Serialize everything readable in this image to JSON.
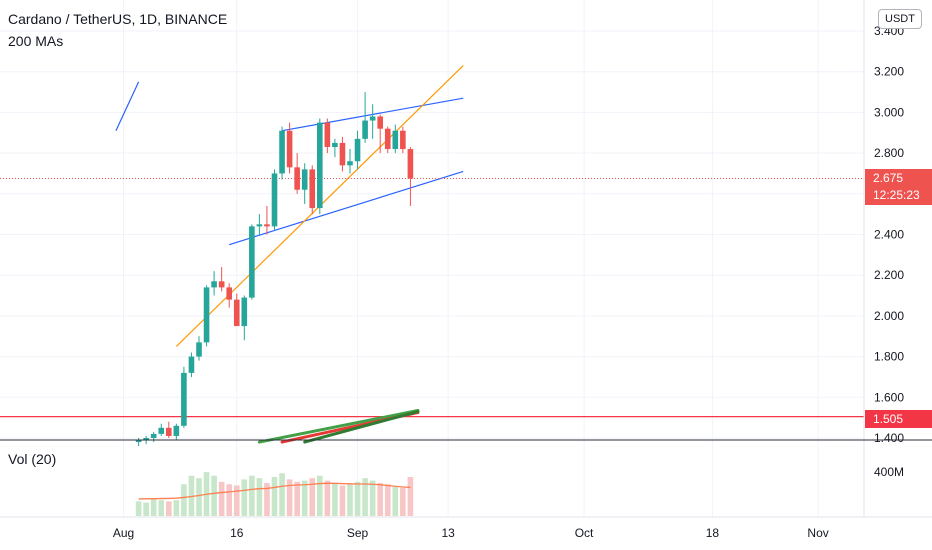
{
  "header": {
    "title": "Cardano / TetherUS, 1D, BINANCE",
    "indicator": "200 MAs",
    "volume_label": "Vol (20)",
    "currency_button": "USDT"
  },
  "price_tag": {
    "value": "2.675",
    "countdown": "12:25:23"
  },
  "line_tag": {
    "value": "1.505"
  },
  "colors": {
    "up": "#26a69a",
    "down": "#ef5350",
    "volume_up": "#c8e6c9",
    "volume_down": "#f7c6c6",
    "volume_ma": "#ff7f50",
    "trendline": "#2962ff",
    "orange_line": "#ff9800",
    "hline": "#f23645"
  },
  "chart_data": {
    "type": "candlestick",
    "symbol": "Cardano / TetherUS",
    "interval": "1D",
    "exchange": "BINANCE",
    "price_axis": {
      "ticks": [
        "3.400",
        "3.200",
        "3.000",
        "2.800",
        "2.600",
        "2.400",
        "2.200",
        "2.000",
        "1.800",
        "1.600",
        "1.400"
      ],
      "ylim": [
        1.39,
        3.45
      ]
    },
    "volume_axis": {
      "tick": "400M"
    },
    "time_axis": {
      "ticks": [
        {
          "label": "Aug",
          "date": "2021-08-01"
        },
        {
          "label": "16",
          "date": "2021-08-16"
        },
        {
          "label": "Sep",
          "date": "2021-09-01"
        },
        {
          "label": "13",
          "date": "2021-09-13"
        },
        {
          "label": "Oct",
          "date": "2021-10-01"
        },
        {
          "label": "18",
          "date": "2021-10-18"
        },
        {
          "label": "Nov",
          "date": "2021-11-01"
        }
      ]
    },
    "candles": [
      {
        "date": "2021-08-03",
        "o": 1.38,
        "h": 1.4,
        "l": 1.36,
        "c": 1.39
      },
      {
        "date": "2021-08-04",
        "o": 1.39,
        "h": 1.41,
        "l": 1.37,
        "c": 1.4
      },
      {
        "date": "2021-08-05",
        "o": 1.4,
        "h": 1.43,
        "l": 1.38,
        "c": 1.42
      },
      {
        "date": "2021-08-06",
        "o": 1.42,
        "h": 1.47,
        "l": 1.41,
        "c": 1.45
      },
      {
        "date": "2021-08-07",
        "o": 1.45,
        "h": 1.48,
        "l": 1.4,
        "c": 1.41
      },
      {
        "date": "2021-08-08",
        "o": 1.41,
        "h": 1.47,
        "l": 1.39,
        "c": 1.46
      },
      {
        "date": "2021-08-09",
        "o": 1.46,
        "h": 1.75,
        "l": 1.45,
        "c": 1.72
      },
      {
        "date": "2021-08-10",
        "o": 1.72,
        "h": 1.82,
        "l": 1.7,
        "c": 1.8
      },
      {
        "date": "2021-08-11",
        "o": 1.8,
        "h": 1.9,
        "l": 1.78,
        "c": 1.87
      },
      {
        "date": "2021-08-12",
        "o": 1.87,
        "h": 2.15,
        "l": 1.85,
        "c": 2.14
      },
      {
        "date": "2021-08-13",
        "o": 2.14,
        "h": 2.22,
        "l": 2.1,
        "c": 2.17
      },
      {
        "date": "2021-08-14",
        "o": 2.17,
        "h": 2.24,
        "l": 2.12,
        "c": 2.14
      },
      {
        "date": "2021-08-15",
        "o": 2.14,
        "h": 2.16,
        "l": 2.04,
        "c": 2.08
      },
      {
        "date": "2021-08-16",
        "o": 2.08,
        "h": 2.11,
        "l": 1.95,
        "c": 1.95
      },
      {
        "date": "2021-08-17",
        "o": 1.95,
        "h": 2.1,
        "l": 1.88,
        "c": 2.09
      },
      {
        "date": "2021-08-18",
        "o": 2.09,
        "h": 2.45,
        "l": 2.08,
        "c": 2.44
      },
      {
        "date": "2021-08-19",
        "o": 2.44,
        "h": 2.5,
        "l": 2.4,
        "c": 2.45
      },
      {
        "date": "2021-08-20",
        "o": 2.45,
        "h": 2.54,
        "l": 2.4,
        "c": 2.44
      },
      {
        "date": "2021-08-21",
        "o": 2.44,
        "h": 2.72,
        "l": 2.42,
        "c": 2.7
      },
      {
        "date": "2021-08-22",
        "o": 2.7,
        "h": 2.93,
        "l": 2.67,
        "c": 2.91
      },
      {
        "date": "2021-08-23",
        "o": 2.91,
        "h": 2.95,
        "l": 2.7,
        "c": 2.73
      },
      {
        "date": "2021-08-24",
        "o": 2.73,
        "h": 2.8,
        "l": 2.6,
        "c": 2.62
      },
      {
        "date": "2021-08-25",
        "o": 2.62,
        "h": 2.75,
        "l": 2.55,
        "c": 2.72
      },
      {
        "date": "2021-08-26",
        "o": 2.72,
        "h": 2.74,
        "l": 2.5,
        "c": 2.53
      },
      {
        "date": "2021-08-27",
        "o": 2.53,
        "h": 2.97,
        "l": 2.5,
        "c": 2.95
      },
      {
        "date": "2021-08-28",
        "o": 2.95,
        "h": 2.97,
        "l": 2.8,
        "c": 2.83
      },
      {
        "date": "2021-08-29",
        "o": 2.83,
        "h": 2.87,
        "l": 2.78,
        "c": 2.85
      },
      {
        "date": "2021-08-30",
        "o": 2.85,
        "h": 2.88,
        "l": 2.71,
        "c": 2.74
      },
      {
        "date": "2021-08-31",
        "o": 2.74,
        "h": 2.82,
        "l": 2.7,
        "c": 2.76
      },
      {
        "date": "2021-09-01",
        "o": 2.76,
        "h": 2.91,
        "l": 2.72,
        "c": 2.87
      },
      {
        "date": "2021-09-02",
        "o": 2.87,
        "h": 3.1,
        "l": 2.85,
        "c": 2.96
      },
      {
        "date": "2021-09-03",
        "o": 2.96,
        "h": 3.04,
        "l": 2.87,
        "c": 2.98
      },
      {
        "date": "2021-09-04",
        "o": 2.98,
        "h": 2.99,
        "l": 2.8,
        "c": 2.92
      },
      {
        "date": "2021-09-05",
        "o": 2.92,
        "h": 2.93,
        "l": 2.8,
        "c": 2.82
      },
      {
        "date": "2021-09-06",
        "o": 2.82,
        "h": 2.94,
        "l": 2.8,
        "c": 2.91
      },
      {
        "date": "2021-09-07",
        "o": 2.91,
        "h": 2.93,
        "l": 2.8,
        "c": 2.82
      },
      {
        "date": "2021-09-08",
        "o": 2.82,
        "h": 2.83,
        "l": 2.54,
        "c": 2.675
      }
    ],
    "volume_scale_million": 400,
    "volume_up_flags": [
      true,
      true,
      true,
      true,
      false,
      true,
      true,
      true,
      true,
      true,
      true,
      false,
      false,
      false,
      true,
      true,
      true,
      false,
      true,
      true,
      false,
      false,
      true,
      false,
      true,
      false,
      true,
      false,
      true,
      true,
      true,
      true,
      false,
      false,
      true,
      false,
      false
    ],
    "volume_million": [
      120,
      110,
      140,
      130,
      120,
      130,
      260,
      330,
      310,
      360,
      330,
      280,
      260,
      250,
      300,
      330,
      310,
      270,
      320,
      350,
      300,
      280,
      290,
      310,
      330,
      290,
      270,
      250,
      260,
      280,
      310,
      290,
      270,
      260,
      240,
      230,
      320
    ],
    "volume_ma_million": [
      140,
      141,
      142,
      143,
      144,
      146,
      152,
      160,
      168,
      178,
      186,
      192,
      198,
      204,
      210,
      218,
      224,
      226,
      234,
      244,
      250,
      254,
      256,
      260,
      266,
      268,
      268,
      266,
      264,
      262,
      262,
      260,
      256,
      250,
      244,
      238,
      234
    ],
    "trendlines": [
      {
        "name": "channel-upper",
        "color": "#2962ff",
        "from": {
          "date": "2021-08-22",
          "price": 2.91
        },
        "to": {
          "date": "2021-09-15",
          "price": 3.07
        }
      },
      {
        "name": "channel-lower",
        "color": "#2962ff",
        "from": {
          "date": "2021-08-15",
          "price": 2.35
        },
        "to": {
          "date": "2021-09-15",
          "price": 2.71
        }
      },
      {
        "name": "diagonal",
        "color": "#ff9800",
        "from": {
          "date": "2021-08-08",
          "price": 1.85
        },
        "to": {
          "date": "2021-09-15",
          "price": 3.23
        }
      },
      {
        "name": "partial-top-left",
        "color": "#2962ff",
        "from": {
          "date": "2021-07-31",
          "price": 2.91
        },
        "to": {
          "date": "2021-08-03",
          "price": 3.15
        }
      }
    ],
    "moving_averages": [
      {
        "color": "#43a047",
        "from": {
          "date": "2021-08-19",
          "price": 1.38
        },
        "to": {
          "date": "2021-09-09",
          "price": 1.535
        }
      },
      {
        "color": "#e53935",
        "from": {
          "date": "2021-08-22",
          "price": 1.38
        },
        "to": {
          "date": "2021-09-09",
          "price": 1.525
        }
      },
      {
        "color": "#2e7d32",
        "from": {
          "date": "2021-08-25",
          "price": 1.38
        },
        "to": {
          "date": "2021-09-09",
          "price": 1.53
        }
      }
    ],
    "horizontal_lines": [
      {
        "price": 1.505,
        "color": "#f23645"
      }
    ],
    "last_price": 2.675,
    "grid": true
  }
}
